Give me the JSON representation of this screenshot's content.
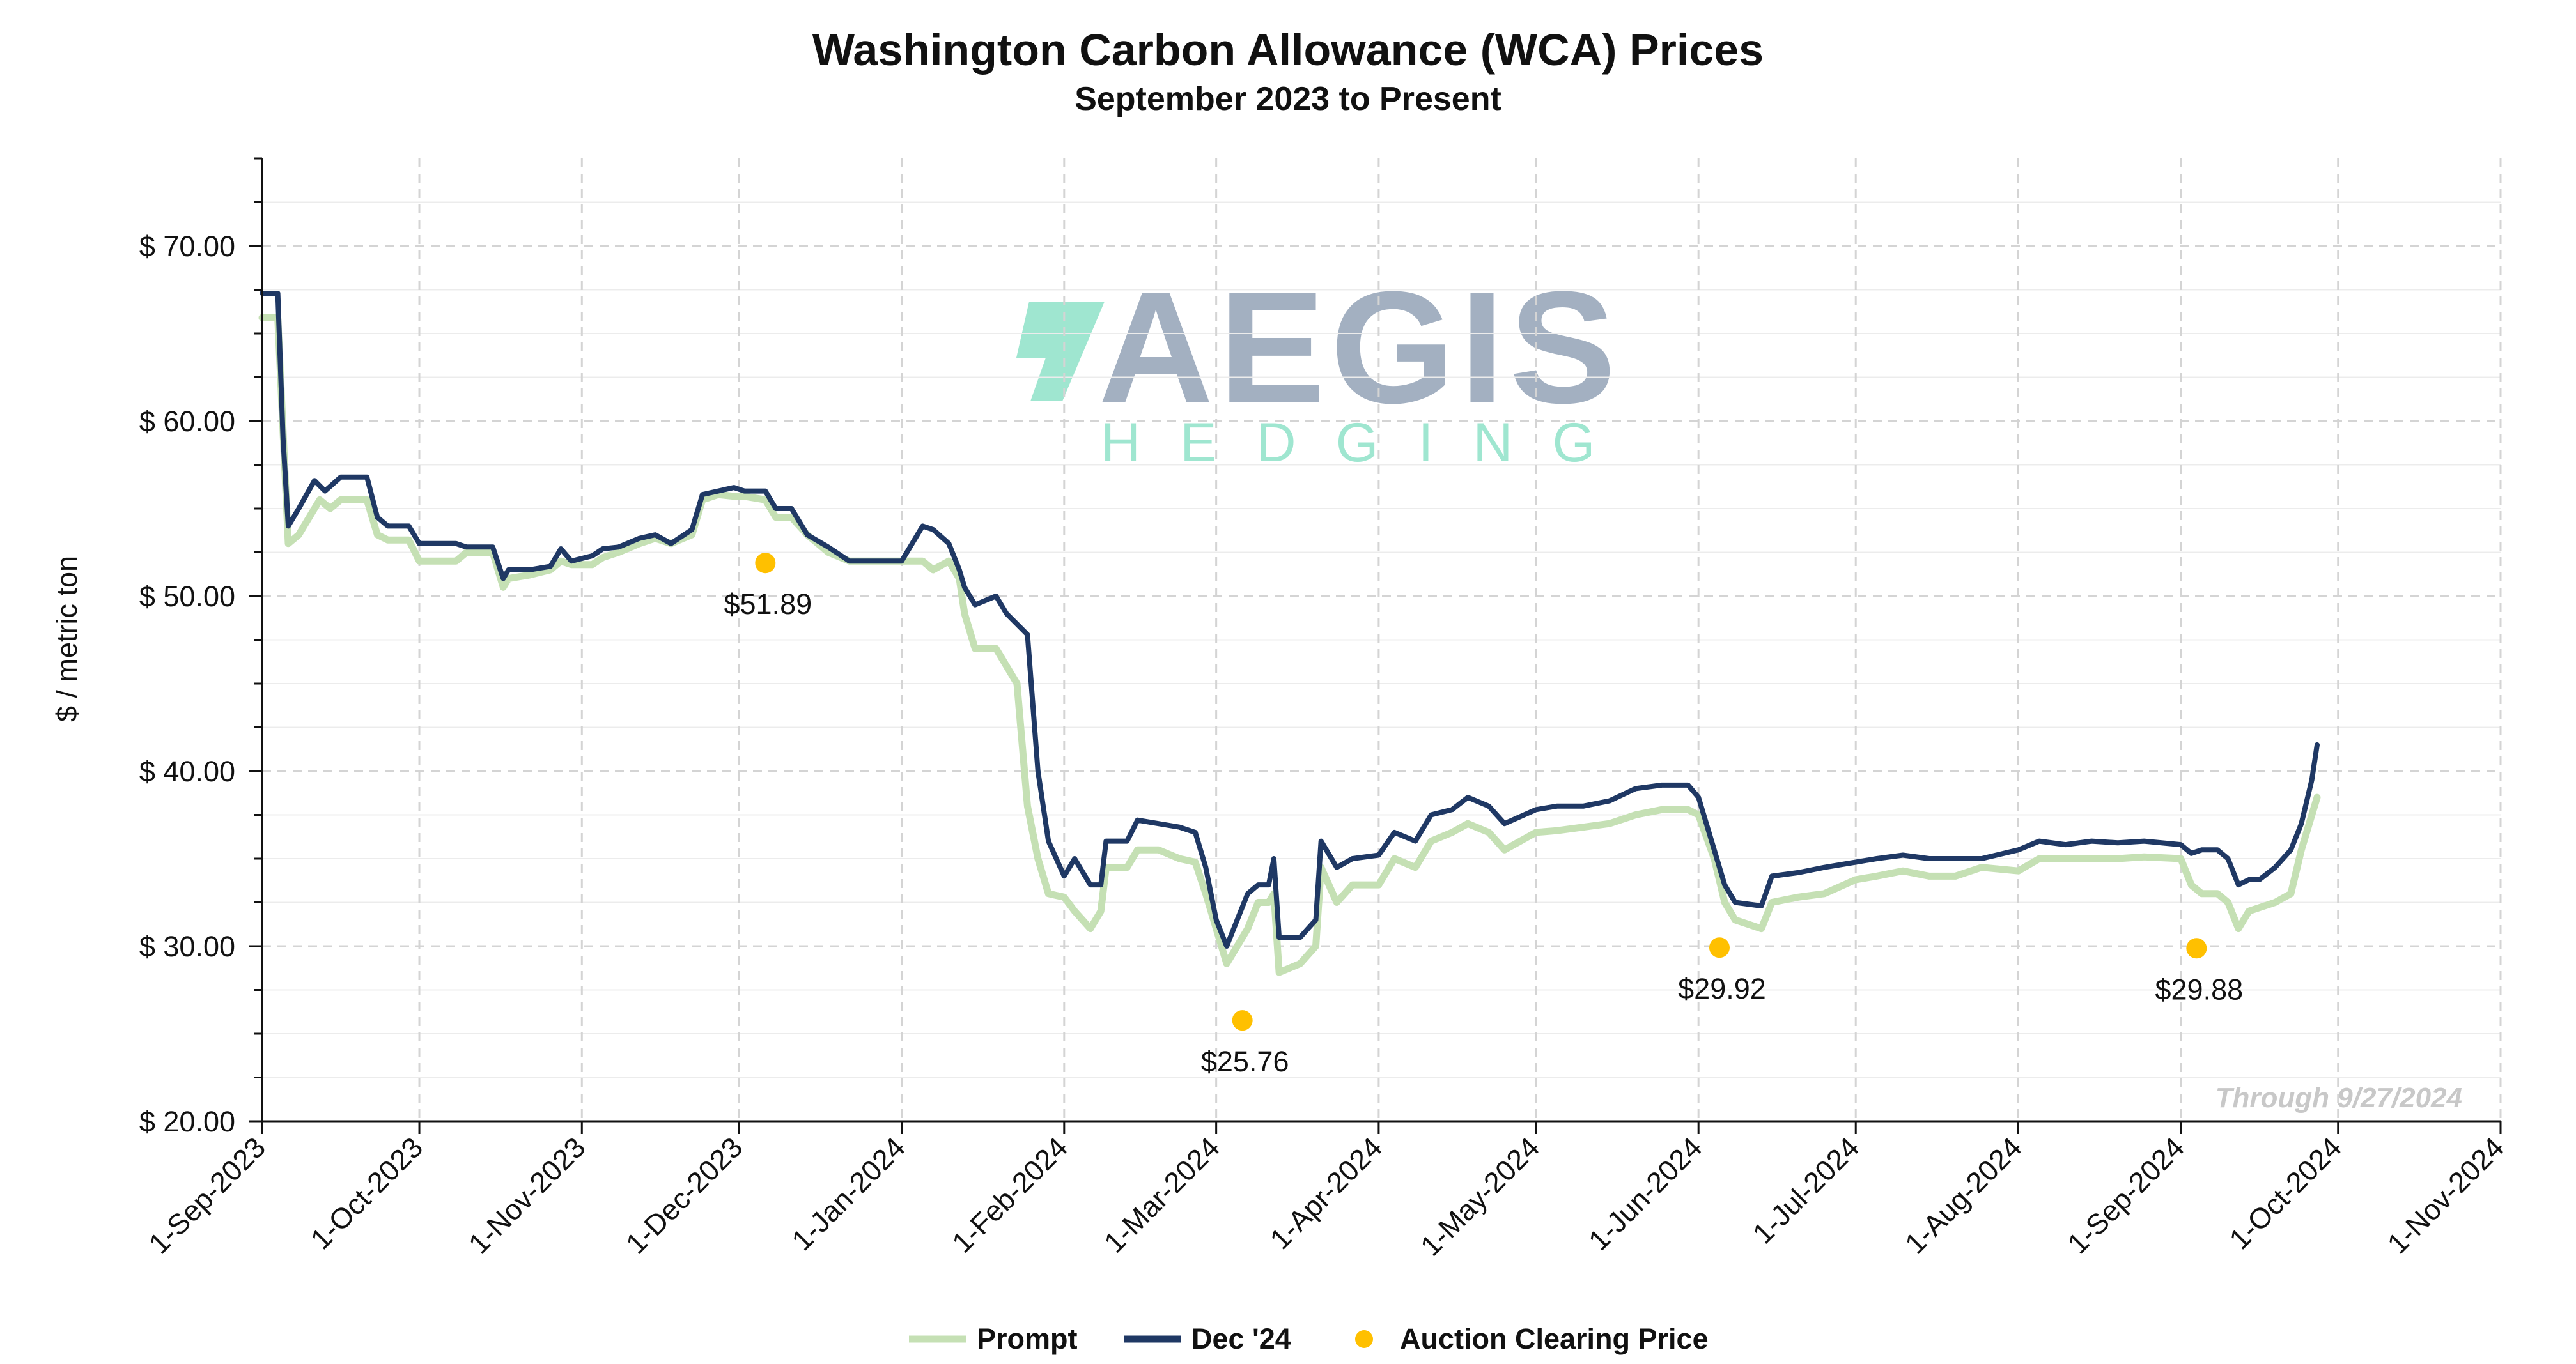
{
  "chart_data": {
    "type": "line",
    "title": "Washington Carbon Allowance (WCA) Prices",
    "subtitle": "September 2023 to Present",
    "xlabel": "",
    "ylabel": "$ / metric ton",
    "x_range": [
      "2023-09-01",
      "2024-11-01"
    ],
    "ylim": [
      20,
      75
    ],
    "y_ticks": [
      20,
      30,
      40,
      50,
      60,
      70
    ],
    "y_tick_labels": [
      "$ 20.00",
      "$ 30.00",
      "$ 40.00",
      "$ 50.00",
      "$ 60.00",
      "$ 70.00"
    ],
    "x_ticks": [
      "2023-09-01",
      "2023-10-01",
      "2023-11-01",
      "2023-12-01",
      "2024-01-01",
      "2024-02-01",
      "2024-03-01",
      "2024-04-01",
      "2024-05-01",
      "2024-06-01",
      "2024-07-01",
      "2024-08-01",
      "2024-09-01",
      "2024-10-01",
      "2024-11-01"
    ],
    "x_tick_labels": [
      "1-Sep-2023",
      "1-Oct-2023",
      "1-Nov-2023",
      "1-Dec-2023",
      "1-Jan-2024",
      "1-Feb-2024",
      "1-Mar-2024",
      "1-Apr-2024",
      "1-May-2024",
      "1-Jun-2024",
      "1-Jul-2024",
      "1-Aug-2024",
      "1-Sep-2024",
      "1-Oct-2024",
      "1-Nov-2024"
    ],
    "grid": true,
    "legend_position": "bottom-center",
    "annotation": "Through 9/27/2024",
    "watermark": {
      "line1": "AEGIS",
      "line2": "HEDGING"
    },
    "series": [
      {
        "name": "Prompt",
        "color": "#c5e0b4",
        "points": [
          [
            "2023-09-01",
            65.9
          ],
          [
            "2023-09-04",
            65.9
          ],
          [
            "2023-09-06",
            53.0
          ],
          [
            "2023-09-08",
            53.5
          ],
          [
            "2023-09-12",
            55.5
          ],
          [
            "2023-09-14",
            55.0
          ],
          [
            "2023-09-16",
            55.5
          ],
          [
            "2023-09-18",
            55.5
          ],
          [
            "2023-09-21",
            55.5
          ],
          [
            "2023-09-23",
            53.5
          ],
          [
            "2023-09-25",
            53.2
          ],
          [
            "2023-09-29",
            53.2
          ],
          [
            "2023-10-01",
            52.0
          ],
          [
            "2023-10-08",
            52.0
          ],
          [
            "2023-10-10",
            52.5
          ],
          [
            "2023-10-15",
            52.5
          ],
          [
            "2023-10-17",
            50.5
          ],
          [
            "2023-10-18",
            51.0
          ],
          [
            "2023-10-22",
            51.2
          ],
          [
            "2023-10-26",
            51.5
          ],
          [
            "2023-10-28",
            52.0
          ],
          [
            "2023-10-30",
            51.8
          ],
          [
            "2023-11-03",
            51.8
          ],
          [
            "2023-11-05",
            52.2
          ],
          [
            "2023-11-08",
            52.5
          ],
          [
            "2023-11-12",
            53.0
          ],
          [
            "2023-11-15",
            53.3
          ],
          [
            "2023-11-18",
            53.0
          ],
          [
            "2023-11-22",
            53.5
          ],
          [
            "2023-11-24",
            55.5
          ],
          [
            "2023-11-27",
            55.8
          ],
          [
            "2023-11-30",
            55.7
          ],
          [
            "2023-12-02",
            55.7
          ],
          [
            "2023-12-06",
            55.5
          ],
          [
            "2023-12-08",
            54.5
          ],
          [
            "2023-12-11",
            54.5
          ],
          [
            "2023-12-14",
            53.5
          ],
          [
            "2023-12-18",
            52.5
          ],
          [
            "2023-12-22",
            52.0
          ],
          [
            "2023-12-26",
            52.0
          ],
          [
            "2024-01-01",
            52.0
          ],
          [
            "2024-01-05",
            52.0
          ],
          [
            "2024-01-07",
            51.5
          ],
          [
            "2024-01-10",
            52.0
          ],
          [
            "2024-01-12",
            51.0
          ],
          [
            "2024-01-13",
            49.0
          ],
          [
            "2024-01-15",
            47.0
          ],
          [
            "2024-01-19",
            47.0
          ],
          [
            "2024-01-21",
            46.0
          ],
          [
            "2024-01-23",
            45.0
          ],
          [
            "2024-01-25",
            38.0
          ],
          [
            "2024-01-27",
            35.0
          ],
          [
            "2024-01-29",
            33.0
          ],
          [
            "2024-02-01",
            32.8
          ],
          [
            "2024-02-03",
            32.0
          ],
          [
            "2024-02-06",
            31.0
          ],
          [
            "2024-02-08",
            32.0
          ],
          [
            "2024-02-09",
            34.5
          ],
          [
            "2024-02-13",
            34.5
          ],
          [
            "2024-02-15",
            35.5
          ],
          [
            "2024-02-19",
            35.5
          ],
          [
            "2024-02-23",
            35.0
          ],
          [
            "2024-02-26",
            34.8
          ],
          [
            "2024-02-28",
            33.0
          ],
          [
            "2024-03-01",
            31.0
          ],
          [
            "2024-03-03",
            29.0
          ],
          [
            "2024-03-05",
            30.0
          ],
          [
            "2024-03-07",
            31.0
          ],
          [
            "2024-03-09",
            32.5
          ],
          [
            "2024-03-11",
            32.5
          ],
          [
            "2024-03-12",
            33.0
          ],
          [
            "2024-03-13",
            28.5
          ],
          [
            "2024-03-17",
            29.0
          ],
          [
            "2024-03-20",
            30.0
          ],
          [
            "2024-03-21",
            34.5
          ],
          [
            "2024-03-24",
            32.5
          ],
          [
            "2024-03-27",
            33.5
          ],
          [
            "2024-04-01",
            33.5
          ],
          [
            "2024-04-04",
            35.0
          ],
          [
            "2024-04-08",
            34.5
          ],
          [
            "2024-04-11",
            36.0
          ],
          [
            "2024-04-15",
            36.5
          ],
          [
            "2024-04-18",
            37.0
          ],
          [
            "2024-04-22",
            36.5
          ],
          [
            "2024-04-25",
            35.5
          ],
          [
            "2024-05-01",
            36.5
          ],
          [
            "2024-05-05",
            36.6
          ],
          [
            "2024-05-10",
            36.8
          ],
          [
            "2024-05-15",
            37.0
          ],
          [
            "2024-05-20",
            37.5
          ],
          [
            "2024-05-25",
            37.8
          ],
          [
            "2024-05-30",
            37.8
          ],
          [
            "2024-06-01",
            37.5
          ],
          [
            "2024-06-04",
            35.0
          ],
          [
            "2024-06-06",
            32.5
          ],
          [
            "2024-06-08",
            31.5
          ],
          [
            "2024-06-13",
            31.0
          ],
          [
            "2024-06-15",
            32.5
          ],
          [
            "2024-06-20",
            32.8
          ],
          [
            "2024-06-25",
            33.0
          ],
          [
            "2024-07-01",
            33.8
          ],
          [
            "2024-07-05",
            34.0
          ],
          [
            "2024-07-10",
            34.3
          ],
          [
            "2024-07-15",
            34.0
          ],
          [
            "2024-07-20",
            34.0
          ],
          [
            "2024-07-25",
            34.5
          ],
          [
            "2024-08-01",
            34.3
          ],
          [
            "2024-08-05",
            35.0
          ],
          [
            "2024-08-10",
            35.0
          ],
          [
            "2024-08-15",
            35.0
          ],
          [
            "2024-08-20",
            35.0
          ],
          [
            "2024-08-25",
            35.1
          ],
          [
            "2024-09-01",
            35.0
          ],
          [
            "2024-09-03",
            33.5
          ],
          [
            "2024-09-05",
            33.0
          ],
          [
            "2024-09-08",
            33.0
          ],
          [
            "2024-09-10",
            32.5
          ],
          [
            "2024-09-12",
            31.0
          ],
          [
            "2024-09-14",
            32.0
          ],
          [
            "2024-09-16",
            32.2
          ],
          [
            "2024-09-19",
            32.5
          ],
          [
            "2024-09-22",
            33.0
          ],
          [
            "2024-09-24",
            35.5
          ],
          [
            "2024-09-26",
            37.5
          ],
          [
            "2024-09-27",
            38.5
          ]
        ]
      },
      {
        "name": "Dec '24",
        "color": "#1f3864",
        "points": [
          [
            "2023-09-01",
            67.3
          ],
          [
            "2023-09-04",
            67.3
          ],
          [
            "2023-09-05",
            59.0
          ],
          [
            "2023-09-06",
            54.0
          ],
          [
            "2023-09-08",
            55.0
          ],
          [
            "2023-09-11",
            56.6
          ],
          [
            "2023-09-13",
            56.0
          ],
          [
            "2023-09-16",
            56.8
          ],
          [
            "2023-09-18",
            56.8
          ],
          [
            "2023-09-21",
            56.8
          ],
          [
            "2023-09-23",
            54.5
          ],
          [
            "2023-09-25",
            54.0
          ],
          [
            "2023-09-29",
            54.0
          ],
          [
            "2023-10-01",
            53.0
          ],
          [
            "2023-10-08",
            53.0
          ],
          [
            "2023-10-10",
            52.8
          ],
          [
            "2023-10-15",
            52.8
          ],
          [
            "2023-10-17",
            51.0
          ],
          [
            "2023-10-18",
            51.5
          ],
          [
            "2023-10-22",
            51.5
          ],
          [
            "2023-10-26",
            51.7
          ],
          [
            "2023-10-28",
            52.7
          ],
          [
            "2023-10-30",
            52.0
          ],
          [
            "2023-11-03",
            52.3
          ],
          [
            "2023-11-05",
            52.7
          ],
          [
            "2023-11-08",
            52.8
          ],
          [
            "2023-11-12",
            53.3
          ],
          [
            "2023-11-15",
            53.5
          ],
          [
            "2023-11-18",
            53.0
          ],
          [
            "2023-11-22",
            53.8
          ],
          [
            "2023-11-24",
            55.8
          ],
          [
            "2023-11-27",
            56.0
          ],
          [
            "2023-11-30",
            56.2
          ],
          [
            "2023-12-02",
            56.0
          ],
          [
            "2023-12-06",
            56.0
          ],
          [
            "2023-12-08",
            55.0
          ],
          [
            "2023-12-11",
            55.0
          ],
          [
            "2023-12-14",
            53.5
          ],
          [
            "2023-12-18",
            52.8
          ],
          [
            "2023-12-22",
            52.0
          ],
          [
            "2023-12-26",
            52.0
          ],
          [
            "2024-01-01",
            52.0
          ],
          [
            "2024-01-05",
            54.0
          ],
          [
            "2024-01-07",
            53.8
          ],
          [
            "2024-01-10",
            53.0
          ],
          [
            "2024-01-12",
            51.5
          ],
          [
            "2024-01-13",
            50.5
          ],
          [
            "2024-01-15",
            49.5
          ],
          [
            "2024-01-19",
            50.0
          ],
          [
            "2024-01-21",
            49.0
          ],
          [
            "2024-01-25",
            47.8
          ],
          [
            "2024-01-27",
            40.0
          ],
          [
            "2024-01-29",
            36.0
          ],
          [
            "2024-02-01",
            34.0
          ],
          [
            "2024-02-03",
            35.0
          ],
          [
            "2024-02-06",
            33.5
          ],
          [
            "2024-02-08",
            33.5
          ],
          [
            "2024-02-09",
            36.0
          ],
          [
            "2024-02-13",
            36.0
          ],
          [
            "2024-02-15",
            37.2
          ],
          [
            "2024-02-19",
            37.0
          ],
          [
            "2024-02-23",
            36.8
          ],
          [
            "2024-02-26",
            36.5
          ],
          [
            "2024-02-28",
            34.5
          ],
          [
            "2024-03-01",
            31.5
          ],
          [
            "2024-03-03",
            30.0
          ],
          [
            "2024-03-05",
            31.5
          ],
          [
            "2024-03-07",
            33.0
          ],
          [
            "2024-03-09",
            33.5
          ],
          [
            "2024-03-11",
            33.5
          ],
          [
            "2024-03-12",
            35.0
          ],
          [
            "2024-03-13",
            30.5
          ],
          [
            "2024-03-17",
            30.5
          ],
          [
            "2024-03-20",
            31.5
          ],
          [
            "2024-03-21",
            36.0
          ],
          [
            "2024-03-24",
            34.5
          ],
          [
            "2024-03-27",
            35.0
          ],
          [
            "2024-04-01",
            35.2
          ],
          [
            "2024-04-04",
            36.5
          ],
          [
            "2024-04-08",
            36.0
          ],
          [
            "2024-04-11",
            37.5
          ],
          [
            "2024-04-15",
            37.8
          ],
          [
            "2024-04-18",
            38.5
          ],
          [
            "2024-04-22",
            38.0
          ],
          [
            "2024-04-25",
            37.0
          ],
          [
            "2024-05-01",
            37.8
          ],
          [
            "2024-05-05",
            38.0
          ],
          [
            "2024-05-10",
            38.0
          ],
          [
            "2024-05-15",
            38.3
          ],
          [
            "2024-05-20",
            39.0
          ],
          [
            "2024-05-25",
            39.2
          ],
          [
            "2024-05-30",
            39.2
          ],
          [
            "2024-06-01",
            38.5
          ],
          [
            "2024-06-04",
            35.5
          ],
          [
            "2024-06-06",
            33.5
          ],
          [
            "2024-06-08",
            32.5
          ],
          [
            "2024-06-13",
            32.3
          ],
          [
            "2024-06-15",
            34.0
          ],
          [
            "2024-06-20",
            34.2
          ],
          [
            "2024-06-25",
            34.5
          ],
          [
            "2024-07-01",
            34.8
          ],
          [
            "2024-07-05",
            35.0
          ],
          [
            "2024-07-10",
            35.2
          ],
          [
            "2024-07-15",
            35.0
          ],
          [
            "2024-07-20",
            35.0
          ],
          [
            "2024-07-25",
            35.0
          ],
          [
            "2024-08-01",
            35.5
          ],
          [
            "2024-08-05",
            36.0
          ],
          [
            "2024-08-10",
            35.8
          ],
          [
            "2024-08-15",
            36.0
          ],
          [
            "2024-08-20",
            35.9
          ],
          [
            "2024-08-25",
            36.0
          ],
          [
            "2024-09-01",
            35.8
          ],
          [
            "2024-09-03",
            35.3
          ],
          [
            "2024-09-05",
            35.5
          ],
          [
            "2024-09-08",
            35.5
          ],
          [
            "2024-09-10",
            35.0
          ],
          [
            "2024-09-12",
            33.5
          ],
          [
            "2024-09-14",
            33.8
          ],
          [
            "2024-09-16",
            33.8
          ],
          [
            "2024-09-19",
            34.5
          ],
          [
            "2024-09-22",
            35.5
          ],
          [
            "2024-09-24",
            37.0
          ],
          [
            "2024-09-26",
            39.5
          ],
          [
            "2024-09-27",
            41.5
          ]
        ]
      },
      {
        "name": "Auction Clearing Price",
        "type": "scatter",
        "color": "#ffc000",
        "points": [
          {
            "x": "2023-12-06",
            "y": 51.89,
            "label": "$51.89"
          },
          {
            "x": "2024-03-06",
            "y": 25.76,
            "label": "$25.76"
          },
          {
            "x": "2024-06-05",
            "y": 29.92,
            "label": "$29.92"
          },
          {
            "x": "2024-09-04",
            "y": 29.88,
            "label": "$29.88"
          }
        ]
      }
    ]
  }
}
